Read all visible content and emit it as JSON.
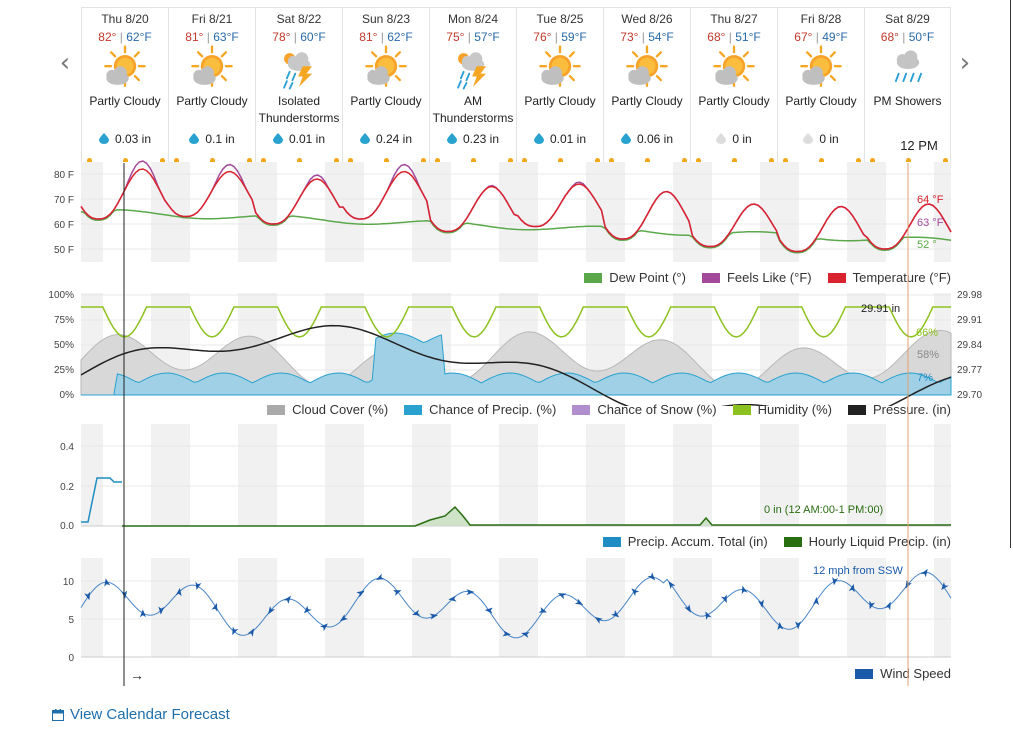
{
  "nav": {
    "prev": "‹",
    "next": "›"
  },
  "days": [
    {
      "name": "Thu 8/20",
      "hi": "82°",
      "lo": "62°F",
      "icon": "partly-cloudy-icon",
      "cond": [
        "Partly Cloudy"
      ],
      "precip": "0.03 in",
      "drop": "blue"
    },
    {
      "name": "Fri 8/21",
      "hi": "81°",
      "lo": "63°F",
      "icon": "partly-cloudy-icon",
      "cond": [
        "Partly Cloudy"
      ],
      "precip": "0.1 in",
      "drop": "blue"
    },
    {
      "name": "Sat 8/22",
      "hi": "78°",
      "lo": "60°F",
      "icon": "thunderstorm-icon",
      "cond": [
        "Isolated",
        "Thunderstorms"
      ],
      "precip": "0.01 in",
      "drop": "blue"
    },
    {
      "name": "Sun 8/23",
      "hi": "81°",
      "lo": "62°F",
      "icon": "partly-cloudy-icon",
      "cond": [
        "Partly Cloudy"
      ],
      "precip": "0.24 in",
      "drop": "blue"
    },
    {
      "name": "Mon 8/24",
      "hi": "75°",
      "lo": "57°F",
      "icon": "thunderstorm-icon",
      "cond": [
        "AM",
        "Thunderstorms"
      ],
      "precip": "0.23 in",
      "drop": "blue"
    },
    {
      "name": "Tue 8/25",
      "hi": "76°",
      "lo": "59°F",
      "icon": "partly-cloudy-icon",
      "cond": [
        "Partly Cloudy"
      ],
      "precip": "0.01 in",
      "drop": "blue"
    },
    {
      "name": "Wed 8/26",
      "hi": "73°",
      "lo": "54°F",
      "icon": "partly-cloudy-icon",
      "cond": [
        "Partly Cloudy"
      ],
      "precip": "0.06 in",
      "drop": "blue"
    },
    {
      "name": "Thu 8/27",
      "hi": "68°",
      "lo": "51°F",
      "icon": "partly-cloudy-icon",
      "cond": [
        "Partly Cloudy"
      ],
      "precip": "0 in",
      "drop": "gray"
    },
    {
      "name": "Fri 8/28",
      "hi": "67°",
      "lo": "49°F",
      "icon": "partly-cloudy-icon",
      "cond": [
        "Partly Cloudy"
      ],
      "precip": "0 in",
      "drop": "gray"
    },
    {
      "name": "Sat 8/29",
      "hi": "68°",
      "lo": "50°F",
      "icon": "showers-icon",
      "cond": [
        "PM Showers"
      ],
      "precip": "",
      "drop": "blue"
    }
  ],
  "hover_time": "12 PM",
  "colors": {
    "temperature": "#d9232e",
    "feels_like": "#a2499c",
    "dew_point": "#5ba84b",
    "cloud_cover": "#aaaaaa",
    "precip_chance": "#2aa2cf",
    "snow_chance": "#b18fcf",
    "humidity": "#8cc21f",
    "pressure": "#222222",
    "accum": "#1f8dc4",
    "hourly": "#2a6e12",
    "wind": "#1a5aa8",
    "link": "#1f6fad"
  },
  "temp_chart": {
    "yticks": [
      "80 F",
      "70 F",
      "60 F",
      "50 F"
    ],
    "end_labels": {
      "temperature": "64 °F",
      "feels_like": "63 °F",
      "dew_point": "52 °"
    },
    "legend": [
      "Dew Point (°)",
      "Feels Like (°F)",
      "Temperature (°F)"
    ]
  },
  "multi_chart": {
    "yticks_left": [
      "100%",
      "75%",
      "50%",
      "25%",
      "0%"
    ],
    "yticks_right": [
      "29.98",
      "29.91",
      "29.84",
      "29.77",
      "29.70"
    ],
    "end_labels": {
      "pressure": "29.91 in",
      "humidity": "66%",
      "cloud": "58%",
      "precip": "7%"
    },
    "legend": [
      "Cloud Cover (%)",
      "Chance of Precip. (%)",
      "Chance of Snow (%)",
      "Humidity (%)",
      "Pressure. (in)"
    ]
  },
  "precip_chart": {
    "yticks": [
      "0.4",
      "0.2",
      "0.0"
    ],
    "annotation": "0 in (12 AM:00-1 PM:00)",
    "legend": [
      "Precip. Accum. Total (in)",
      "Hourly Liquid Precip. (in)"
    ]
  },
  "wind_chart": {
    "yticks": [
      "10",
      "5",
      "0"
    ],
    "annotation": "12 mph from SSW",
    "legend": [
      "Wind Speed"
    ],
    "cursor_arrow": "→"
  },
  "calendar_link": "View Calendar Forecast"
}
